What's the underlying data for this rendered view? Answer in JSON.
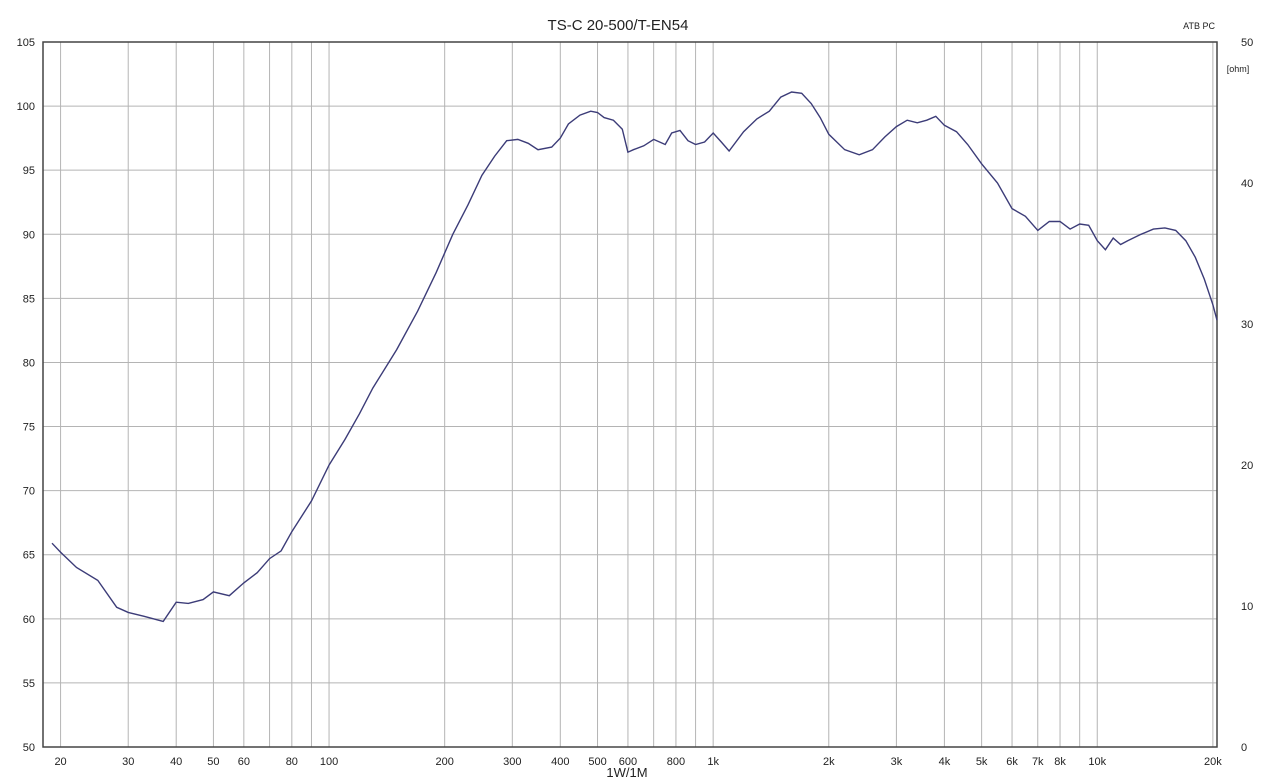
{
  "chart_data": {
    "type": "line",
    "title": "TS-C 20-500/T-EN54",
    "corner_label": "ATB PC",
    "xlabel": "1W/1M",
    "y2_unit": "[ohm]",
    "x_scale": "log",
    "xlim": [
      18,
      20500
    ],
    "ylim": [
      50,
      105
    ],
    "y2lim": [
      0,
      50
    ],
    "grid": true,
    "colors": {
      "line": "#3c3c78",
      "grid": "#b4b4b4",
      "frame": "#444444"
    },
    "x_ticks": [
      {
        "value": 20,
        "label": "20"
      },
      {
        "value": 30,
        "label": "30"
      },
      {
        "value": 40,
        "label": "40"
      },
      {
        "value": 50,
        "label": "50"
      },
      {
        "value": 60,
        "label": "60"
      },
      {
        "value": 80,
        "label": "80"
      },
      {
        "value": 100,
        "label": "100"
      },
      {
        "value": 200,
        "label": "200"
      },
      {
        "value": 300,
        "label": "300"
      },
      {
        "value": 400,
        "label": "400"
      },
      {
        "value": 500,
        "label": "500"
      },
      {
        "value": 600,
        "label": "600"
      },
      {
        "value": 800,
        "label": "800"
      },
      {
        "value": 1000,
        "label": "1k"
      },
      {
        "value": 2000,
        "label": "2k"
      },
      {
        "value": 3000,
        "label": "3k"
      },
      {
        "value": 4000,
        "label": "4k"
      },
      {
        "value": 5000,
        "label": "5k"
      },
      {
        "value": 6000,
        "label": "6k"
      },
      {
        "value": 7000,
        "label": "7k"
      },
      {
        "value": 8000,
        "label": "8k"
      },
      {
        "value": 10000,
        "label": "10k"
      },
      {
        "value": 20000,
        "label": "20k"
      }
    ],
    "x_gridlines": [
      20,
      30,
      40,
      50,
      60,
      70,
      80,
      90,
      100,
      200,
      300,
      400,
      500,
      600,
      700,
      800,
      900,
      1000,
      2000,
      3000,
      4000,
      5000,
      6000,
      7000,
      8000,
      9000,
      10000,
      20000
    ],
    "y_ticks": [
      "50",
      "55",
      "60",
      "65",
      "70",
      "75",
      "80",
      "85",
      "90",
      "95",
      "100",
      "105"
    ],
    "y2_ticks": [
      {
        "value": 0,
        "label": "0"
      },
      {
        "value": 10,
        "label": "10"
      },
      {
        "value": 20,
        "label": "20"
      },
      {
        "value": 30,
        "label": "30"
      },
      {
        "value": 40,
        "label": "40"
      },
      {
        "value": 50,
        "label": "50"
      }
    ],
    "series": [
      {
        "points": [
          [
            19,
            65.9
          ],
          [
            20,
            65.2
          ],
          [
            22,
            64.0
          ],
          [
            25,
            63.0
          ],
          [
            28,
            60.9
          ],
          [
            30,
            60.5
          ],
          [
            33,
            60.2
          ],
          [
            37,
            59.8
          ],
          [
            40,
            61.3
          ],
          [
            43,
            61.2
          ],
          [
            47,
            61.5
          ],
          [
            50,
            62.1
          ],
          [
            55,
            61.8
          ],
          [
            60,
            62.8
          ],
          [
            65,
            63.6
          ],
          [
            70,
            64.7
          ],
          [
            75,
            65.3
          ],
          [
            80,
            66.8
          ],
          [
            90,
            69.2
          ],
          [
            100,
            72.0
          ],
          [
            110,
            74.0
          ],
          [
            120,
            76.0
          ],
          [
            130,
            78.0
          ],
          [
            150,
            81.0
          ],
          [
            170,
            84.0
          ],
          [
            190,
            87.0
          ],
          [
            210,
            90.0
          ],
          [
            230,
            92.3
          ],
          [
            250,
            94.6
          ],
          [
            270,
            96.1
          ],
          [
            290,
            97.3
          ],
          [
            310,
            97.4
          ],
          [
            330,
            97.1
          ],
          [
            350,
            96.6
          ],
          [
            380,
            96.8
          ],
          [
            400,
            97.5
          ],
          [
            420,
            98.6
          ],
          [
            450,
            99.3
          ],
          [
            480,
            99.6
          ],
          [
            500,
            99.5
          ],
          [
            520,
            99.1
          ],
          [
            550,
            98.9
          ],
          [
            580,
            98.2
          ],
          [
            600,
            96.4
          ],
          [
            620,
            96.6
          ],
          [
            660,
            96.9
          ],
          [
            700,
            97.4
          ],
          [
            750,
            97.0
          ],
          [
            780,
            97.9
          ],
          [
            820,
            98.1
          ],
          [
            860,
            97.3
          ],
          [
            900,
            97.0
          ],
          [
            950,
            97.2
          ],
          [
            1000,
            97.9
          ],
          [
            1050,
            97.2
          ],
          [
            1100,
            96.5
          ],
          [
            1200,
            98.0
          ],
          [
            1300,
            99.0
          ],
          [
            1400,
            99.6
          ],
          [
            1500,
            100.7
          ],
          [
            1600,
            101.1
          ],
          [
            1700,
            101.0
          ],
          [
            1800,
            100.2
          ],
          [
            1900,
            99.1
          ],
          [
            2000,
            97.8
          ],
          [
            2200,
            96.6
          ],
          [
            2400,
            96.2
          ],
          [
            2600,
            96.6
          ],
          [
            2800,
            97.6
          ],
          [
            3000,
            98.4
          ],
          [
            3200,
            98.9
          ],
          [
            3400,
            98.7
          ],
          [
            3600,
            98.9
          ],
          [
            3800,
            99.2
          ],
          [
            4000,
            98.5
          ],
          [
            4300,
            98.0
          ],
          [
            4600,
            97.0
          ],
          [
            5000,
            95.5
          ],
          [
            5500,
            94.0
          ],
          [
            6000,
            92.0
          ],
          [
            6500,
            91.4
          ],
          [
            7000,
            90.3
          ],
          [
            7500,
            91.0
          ],
          [
            8000,
            91.0
          ],
          [
            8500,
            90.4
          ],
          [
            9000,
            90.8
          ],
          [
            9500,
            90.7
          ],
          [
            10000,
            89.5
          ],
          [
            10500,
            88.8
          ],
          [
            11000,
            89.7
          ],
          [
            11500,
            89.2
          ],
          [
            12000,
            89.5
          ],
          [
            13000,
            90.0
          ],
          [
            14000,
            90.4
          ],
          [
            15000,
            90.5
          ],
          [
            16000,
            90.3
          ],
          [
            17000,
            89.5
          ],
          [
            18000,
            88.2
          ],
          [
            19000,
            86.5
          ],
          [
            20000,
            84.5
          ],
          [
            20500,
            83.3
          ]
        ]
      }
    ]
  }
}
